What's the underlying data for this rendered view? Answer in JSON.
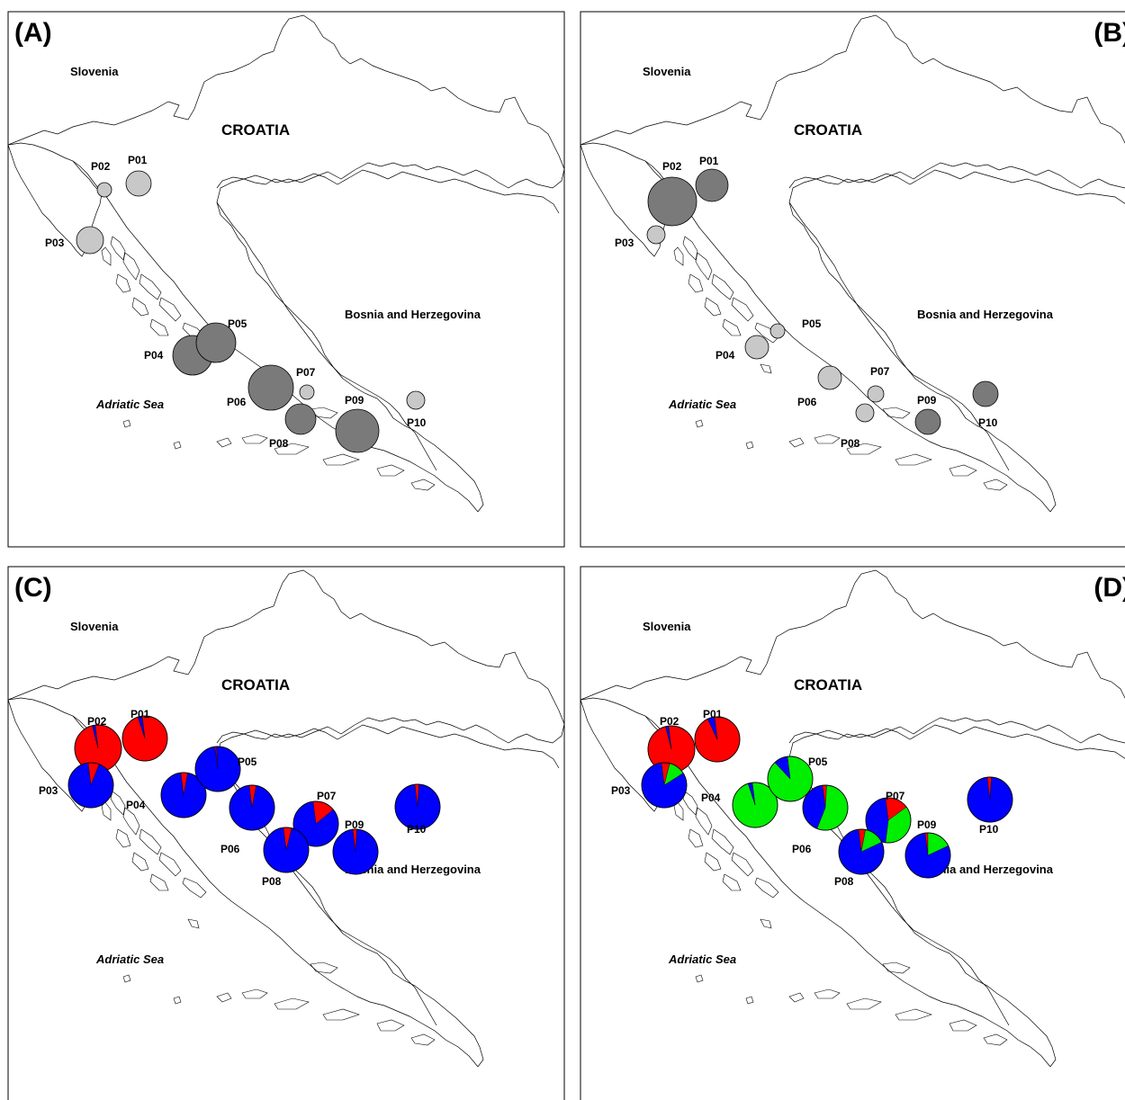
{
  "country_labels": {
    "slovenia": "Slovenia",
    "croatia": "CROATIA",
    "bosnia": "Bosnia and Herzegovina",
    "sea": "Adriatic Sea"
  },
  "colors": {
    "light_gray": "#c8c8c8",
    "dark_gray": "#7a7a7a",
    "red": "#ff0000",
    "blue": "#0000ff",
    "green": "#00ee00"
  },
  "panels": [
    {
      "letter": "(A)",
      "type": "circles",
      "sites": [
        {
          "name": "P01",
          "fill": "light"
        },
        {
          "name": "P02",
          "fill": "light"
        },
        {
          "name": "P03",
          "fill": "light"
        },
        {
          "name": "P04",
          "fill": "dark"
        },
        {
          "name": "P05",
          "fill": "dark"
        },
        {
          "name": "P06",
          "fill": "dark"
        },
        {
          "name": "P07",
          "fill": "light"
        },
        {
          "name": "P08",
          "fill": "dark"
        },
        {
          "name": "P09",
          "fill": "dark"
        },
        {
          "name": "P10",
          "fill": "light"
        }
      ]
    },
    {
      "letter": "(B)",
      "type": "circles",
      "sites": [
        {
          "name": "P01",
          "fill": "dark"
        },
        {
          "name": "P02",
          "fill": "dark"
        },
        {
          "name": "P03",
          "fill": "light"
        },
        {
          "name": "P04",
          "fill": "light"
        },
        {
          "name": "P05",
          "fill": "light"
        },
        {
          "name": "P06",
          "fill": "light"
        },
        {
          "name": "P07",
          "fill": "light"
        },
        {
          "name": "P08",
          "fill": "light"
        },
        {
          "name": "P09",
          "fill": "dark"
        },
        {
          "name": "P10",
          "fill": "dark"
        }
      ]
    },
    {
      "letter": "(C)",
      "type": "pies",
      "sites": [
        {
          "name": "P01",
          "fractions": {
            "red": 0.97,
            "blue": 0.03
          }
        },
        {
          "name": "P02",
          "fractions": {
            "red": 0.98,
            "blue": 0.02
          }
        },
        {
          "name": "P03",
          "fractions": {
            "red": 0.08,
            "blue": 0.92
          }
        },
        {
          "name": "P04",
          "fractions": {
            "red": 0.05,
            "blue": 0.95
          }
        },
        {
          "name": "P05",
          "fractions": {
            "red": 0.01,
            "blue": 0.99
          }
        },
        {
          "name": "P06",
          "fractions": {
            "red": 0.05,
            "blue": 0.95
          }
        },
        {
          "name": "P07",
          "fractions": {
            "red": 0.16,
            "blue": 0.84
          }
        },
        {
          "name": "P08",
          "fractions": {
            "red": 0.06,
            "blue": 0.94
          }
        },
        {
          "name": "P09",
          "fractions": {
            "red": 0.03,
            "blue": 0.97
          }
        },
        {
          "name": "P10",
          "fractions": {
            "red": 0.03,
            "blue": 0.97
          }
        }
      ]
    },
    {
      "letter": "(D)",
      "type": "pies",
      "sites": [
        {
          "name": "P01",
          "fractions": {
            "red": 0.95,
            "blue": 0.05,
            "green": 0.0
          }
        },
        {
          "name": "P02",
          "fractions": {
            "red": 0.98,
            "blue": 0.02,
            "green": 0.0
          }
        },
        {
          "name": "P03",
          "fractions": {
            "red": 0.06,
            "blue": 0.82,
            "green": 0.12
          }
        },
        {
          "name": "P04",
          "fractions": {
            "red": 0.0,
            "blue": 0.03,
            "green": 0.97
          }
        },
        {
          "name": "P05",
          "fractions": {
            "red": 0.0,
            "blue": 0.1,
            "green": 0.9
          }
        },
        {
          "name": "P06",
          "fractions": {
            "red": 0.03,
            "blue": 0.42,
            "green": 0.55
          }
        },
        {
          "name": "P07",
          "fractions": {
            "red": 0.17,
            "blue": 0.46,
            "green": 0.37
          }
        },
        {
          "name": "P08",
          "fractions": {
            "red": 0.05,
            "blue": 0.8,
            "green": 0.15
          }
        },
        {
          "name": "P09",
          "fractions": {
            "red": 0.02,
            "blue": 0.8,
            "green": 0.18
          }
        },
        {
          "name": "P10",
          "fractions": {
            "red": 0.03,
            "blue": 0.97,
            "green": 0.0
          }
        }
      ]
    }
  ]
}
